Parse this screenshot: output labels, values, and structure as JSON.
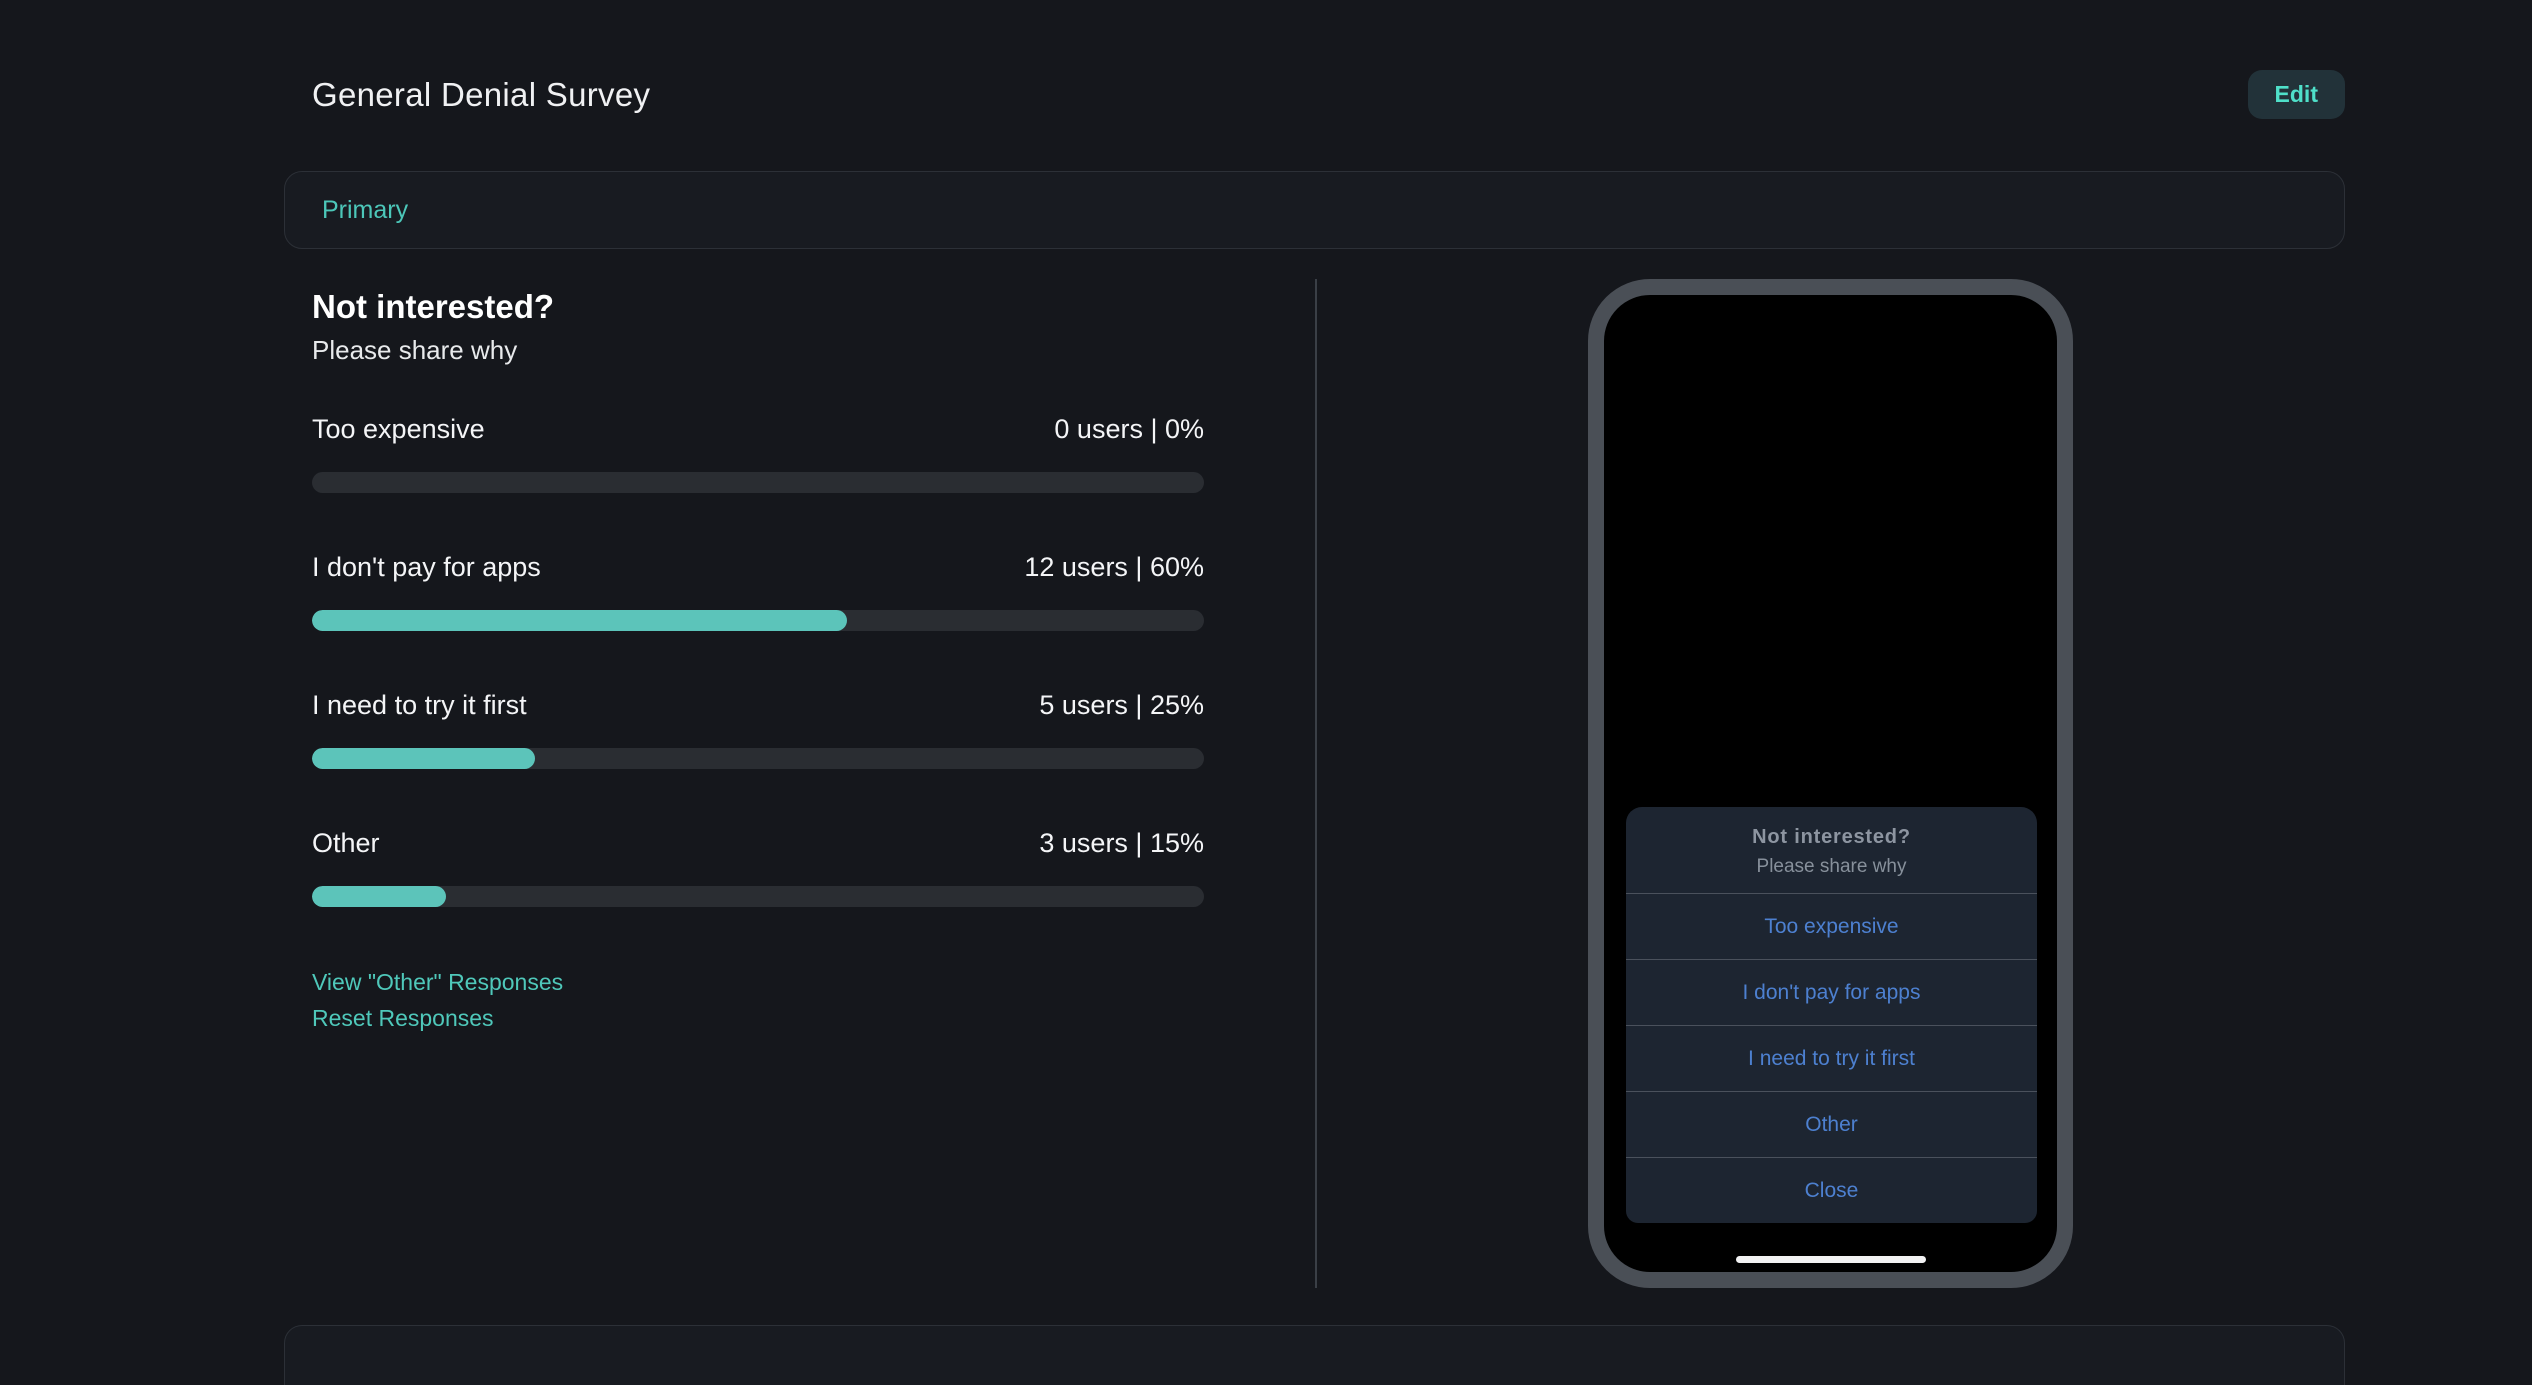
{
  "header": {
    "title": "General Denial Survey",
    "edit_label": "Edit"
  },
  "section": {
    "label": "Primary"
  },
  "survey": {
    "question": "Not interested?",
    "subtitle": "Please share why",
    "options": [
      {
        "label": "Too expensive",
        "users": 0,
        "percent": 0,
        "stat": "0 users | 0%"
      },
      {
        "label": "I don't pay for apps",
        "users": 12,
        "percent": 60,
        "stat": "12 users | 60%"
      },
      {
        "label": "I need to try it first",
        "users": 5,
        "percent": 25,
        "stat": "5 users | 25%"
      },
      {
        "label": "Other",
        "users": 3,
        "percent": 15,
        "stat": "3 users | 15%"
      }
    ],
    "links": {
      "view_other": "View \"Other\" Responses",
      "reset": "Reset Responses"
    }
  },
  "phone": {
    "sheet": {
      "title": "Not interested?",
      "subtitle": "Please share why",
      "items": [
        "Too expensive",
        "I don't pay for apps",
        "I need to try it first",
        "Other"
      ],
      "close_label": "Close"
    }
  },
  "colors": {
    "page_bg": "#15171c",
    "accent_teal": "#4fc8ba",
    "bar_fill": "#5cc4ba",
    "bar_track": "#2a2d32",
    "sheet_bg": "#1d2531",
    "sheet_link_blue": "#4d80d0",
    "phone_bezel": "#4a4f56"
  }
}
